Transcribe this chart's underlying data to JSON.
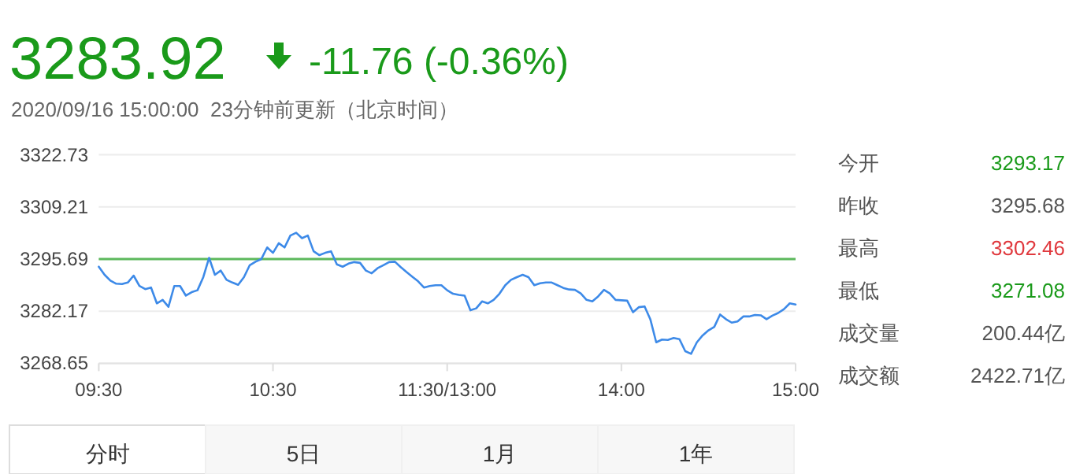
{
  "chart_data": {
    "type": "line",
    "categories": [
      "09:30",
      null,
      null,
      null,
      null,
      null,
      null,
      null,
      null,
      null,
      null,
      null,
      null,
      null,
      null,
      null,
      null,
      null,
      null,
      null,
      null,
      null,
      null,
      null,
      null,
      null,
      null,
      null,
      null,
      null,
      "10:30",
      null,
      null,
      null,
      null,
      null,
      null,
      null,
      null,
      null,
      null,
      null,
      null,
      null,
      null,
      null,
      null,
      null,
      null,
      null,
      null,
      null,
      null,
      null,
      null,
      null,
      null,
      null,
      null,
      null,
      "11:30/13:00",
      null,
      null,
      null,
      null,
      null,
      null,
      null,
      null,
      null,
      null,
      null,
      null,
      null,
      null,
      null,
      null,
      null,
      null,
      null,
      null,
      null,
      null,
      null,
      null,
      null,
      null,
      null,
      null,
      null,
      "14:00",
      null,
      null,
      null,
      null,
      null,
      null,
      null,
      null,
      null,
      null,
      null,
      null,
      null,
      null,
      null,
      null,
      null,
      null,
      null,
      null,
      null,
      null,
      null,
      null,
      null,
      null,
      null,
      null,
      null,
      "15:00"
    ],
    "series": [
      {
        "color": "#3d8ae8",
        "values": [
          3293.7,
          3291.6,
          3290.1,
          3289.3,
          3289.2,
          3289.6,
          3291.4,
          3288.7,
          3287.9,
          3288.3,
          3284.2,
          3285.1,
          3283.3,
          3288.7,
          3288.7,
          3286.2,
          3287.1,
          3287.6,
          3291.0,
          3296.0,
          3291.6,
          3292.7,
          3290.3,
          3289.6,
          3289.0,
          3291.0,
          3294.1,
          3295.0,
          3295.7,
          3298.7,
          3297.3,
          3299.8,
          3298.7,
          3301.8,
          3302.5,
          3301.1,
          3301.8,
          3297.7,
          3296.7,
          3297.3,
          3297.7,
          3294.3,
          3293.7,
          3294.5,
          3294.9,
          3294.7,
          3292.7,
          3292.0,
          3293.3,
          3294.1,
          3294.9,
          3295.0,
          3293.6,
          3292.3,
          3291.1,
          3289.9,
          3288.3,
          3288.7,
          3288.9,
          3288.9,
          3287.6,
          3286.7,
          3286.4,
          3286.2,
          3282.4,
          3282.9,
          3284.7,
          3284.2,
          3285.1,
          3286.7,
          3288.9,
          3290.3,
          3291.0,
          3291.6,
          3291.0,
          3288.9,
          3289.4,
          3289.6,
          3289.6,
          3288.9,
          3288.2,
          3287.8,
          3287.7,
          3286.8,
          3285.1,
          3284.7,
          3286.0,
          3287.7,
          3286.8,
          3285.1,
          3285.0,
          3284.9,
          3281.9,
          3283.2,
          3283.4,
          3280.0,
          3274.1,
          3274.8,
          3274.7,
          3275.2,
          3274.9,
          3271.8,
          3271.1,
          3274.1,
          3275.9,
          3277.2,
          3278.1,
          3281.3,
          3280.1,
          3279.2,
          3279.5,
          3280.8,
          3280.8,
          3281.2,
          3281.1,
          3280.1,
          3281.0,
          3281.7,
          3282.7,
          3284.2,
          3283.9
        ]
      }
    ],
    "ylim": [
      3268.65,
      3322.73
    ],
    "yticks": [
      3268.65,
      3282.17,
      3295.69,
      3309.21,
      3322.73
    ],
    "grid": "y",
    "ref_lines": [
      {
        "axis": "y",
        "value": 3295.69,
        "color": "#5cb85c"
      }
    ],
    "annotations": [
      "3283.92",
      "-11.76 (-0.36%)",
      "2020/09/16 15:00:00  23分钟前更新（北京时间）",
      "今开",
      "3293.17",
      "昨收",
      "3295.68",
      "最高",
      "3302.46",
      "最低",
      "3271.08",
      "成交量",
      "200.44亿",
      "成交额",
      "2422.71亿",
      "分时",
      "5日",
      "1月",
      "1年"
    ]
  }
}
